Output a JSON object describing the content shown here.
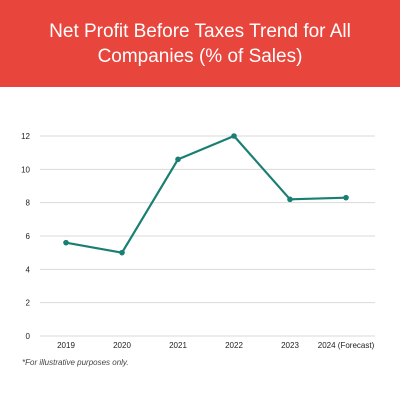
{
  "header": {
    "title": "Net Profit Before Taxes Trend for All Companies (% of Sales)"
  },
  "footnote": "*For illustrative purposes only.",
  "colors": {
    "header_bg": "#e8453c",
    "line": "#1a7f73",
    "grid": "#d9d9d9"
  },
  "chart_data": {
    "type": "line",
    "title": "Net Profit Before Taxes Trend for All Companies (% of Sales)",
    "categories": [
      "2019",
      "2020",
      "2021",
      "2022",
      "2023",
      "2024 (Forecast)"
    ],
    "series": [
      {
        "values": [
          5.6,
          5.0,
          10.6,
          12.0,
          8.2,
          8.3
        ]
      }
    ],
    "yticks": [
      0,
      2,
      4,
      6,
      8,
      10,
      12
    ],
    "ylim": [
      0,
      12
    ],
    "xlabel": "",
    "ylabel": "",
    "grid": true,
    "legend": "none"
  }
}
